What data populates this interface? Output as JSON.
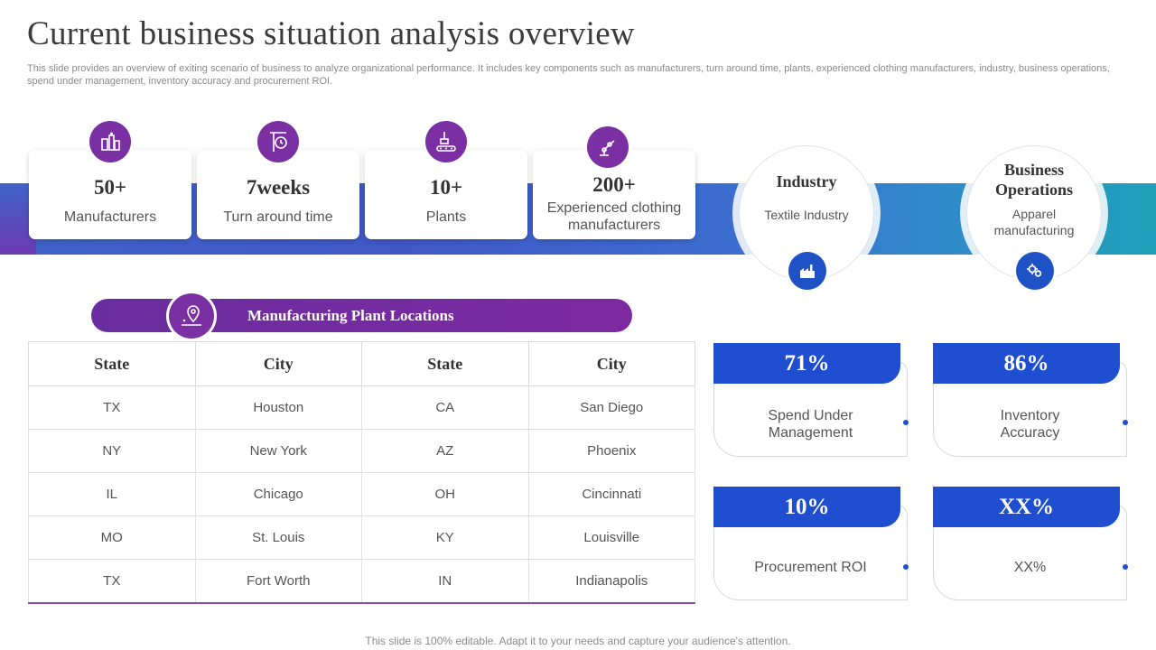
{
  "title": "Current business situation analysis overview",
  "subtitle": "This slide provides an overview of exiting scenario of business to analyze organizational performance. It includes key components such as manufacturers, turn around time, plants, experienced clothing manufacturers, industry, business operations, spend under management, inventory accuracy and procurement ROI.",
  "stats": [
    {
      "value": "50+",
      "label": "Manufacturers",
      "icon": "factory-icon"
    },
    {
      "value": "7weeks",
      "label": "Turn around time",
      "icon": "clock-sign-icon"
    },
    {
      "value": "10+",
      "label": "Plants",
      "icon": "conveyor-icon"
    },
    {
      "value": "200+",
      "label": "Experienced clothing manufacturers",
      "icon": "robot-arm-icon"
    }
  ],
  "info": [
    {
      "heading": "Industry",
      "text": "Textile Industry",
      "icon": "industry-icon"
    },
    {
      "heading": "Business Operations",
      "text": "Apparel manufacturing",
      "icon": "gears-icon"
    }
  ],
  "locations": {
    "title": "Manufacturing Plant Locations",
    "headers": [
      "State",
      "City",
      "State",
      "City"
    ],
    "rows": [
      [
        "TX",
        "Houston",
        "CA",
        "San Diego"
      ],
      [
        "NY",
        "New York",
        "AZ",
        "Phoenix"
      ],
      [
        "IL",
        "Chicago",
        "OH",
        "Cincinnati"
      ],
      [
        "MO",
        "St. Louis",
        "KY",
        "Louisville"
      ],
      [
        "TX",
        "Fort Worth",
        "IN",
        "Indianapolis"
      ]
    ]
  },
  "kpis": [
    {
      "value": "71%",
      "label": "Spend Under Management"
    },
    {
      "value": "86%",
      "label": "Inventory Accuracy"
    },
    {
      "value": "10%",
      "label": "Procurement ROI"
    },
    {
      "value": "XX%",
      "label": "XX%"
    }
  ],
  "footer": "This slide is 100% editable. Adapt it to your needs and capture your audience's attention.",
  "colors": {
    "purple": "#7a2fa2",
    "blue": "#1f4fd0"
  }
}
